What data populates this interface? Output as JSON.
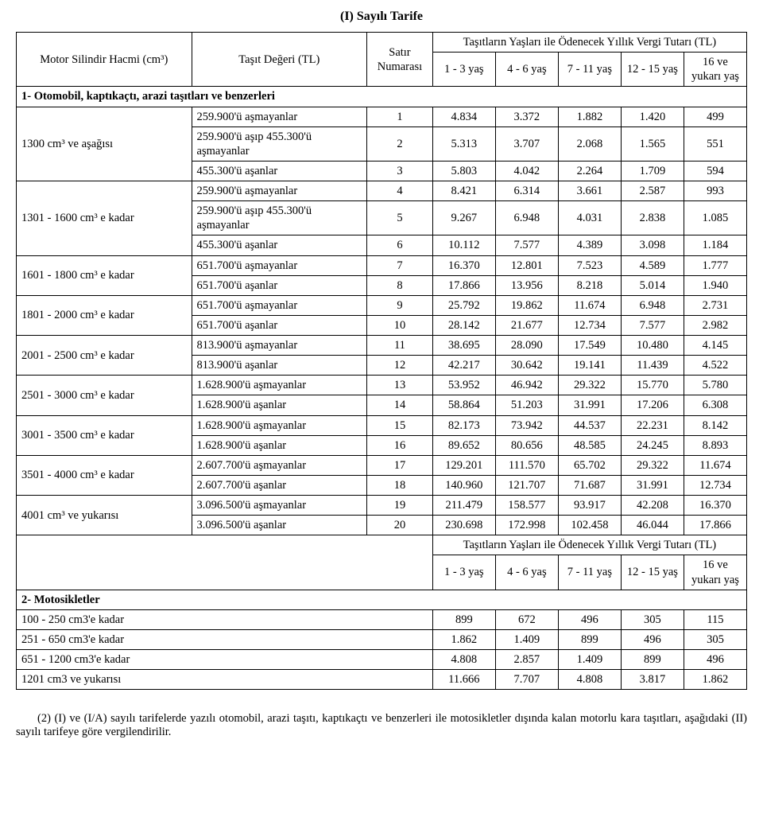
{
  "title": "(I) Sayılı Tarife",
  "headers": {
    "engine": "Motor Silindir Hacmi (cm³)",
    "value": "Taşıt Değeri (TL)",
    "rowNo": "Satır Numarası",
    "ageGroup": "Taşıtların Yaşları ile Ödenecek Yıllık Vergi Tutarı (TL)",
    "age1": "1 - 3 yaş",
    "age2": "4 - 6 yaş",
    "age3": "7 - 11 yaş",
    "age4": "12 - 15 yaş",
    "age5": "16 ve yukarı yaş"
  },
  "section1": "1- Otomobil, kaptıkaçtı, arazi taşıtları ve benzerleri",
  "groups": [
    {
      "engine": "1300 cm³ ve aşağısı",
      "rows": [
        {
          "value": "259.900'ü aşmayanlar",
          "no": "1",
          "v": [
            "4.834",
            "3.372",
            "1.882",
            "1.420",
            "499"
          ]
        },
        {
          "value": "259.900'ü aşıp 455.300'ü aşmayanlar",
          "no": "2",
          "v": [
            "5.313",
            "3.707",
            "2.068",
            "1.565",
            "551"
          ]
        },
        {
          "value": "455.300'ü aşanlar",
          "no": "3",
          "v": [
            "5.803",
            "4.042",
            "2.264",
            "1.709",
            "594"
          ]
        }
      ]
    },
    {
      "engine": "1301 - 1600 cm³ e kadar",
      "rows": [
        {
          "value": "259.900'ü aşmayanlar",
          "no": "4",
          "v": [
            "8.421",
            "6.314",
            "3.661",
            "2.587",
            "993"
          ]
        },
        {
          "value": "259.900'ü aşıp 455.300'ü aşmayanlar",
          "no": "5",
          "v": [
            "9.267",
            "6.948",
            "4.031",
            "2.838",
            "1.085"
          ]
        },
        {
          "value": "455.300'ü aşanlar",
          "no": "6",
          "v": [
            "10.112",
            "7.577",
            "4.389",
            "3.098",
            "1.184"
          ]
        }
      ]
    },
    {
      "engine": "1601 - 1800 cm³ e kadar",
      "rows": [
        {
          "value": "651.700'ü aşmayanlar",
          "no": "7",
          "v": [
            "16.370",
            "12.801",
            "7.523",
            "4.589",
            "1.777"
          ]
        },
        {
          "value": "651.700'ü aşanlar",
          "no": "8",
          "v": [
            "17.866",
            "13.956",
            "8.218",
            "5.014",
            "1.940"
          ]
        }
      ]
    },
    {
      "engine": "1801 - 2000 cm³ e kadar",
      "rows": [
        {
          "value": "651.700'ü aşmayanlar",
          "no": "9",
          "v": [
            "25.792",
            "19.862",
            "11.674",
            "6.948",
            "2.731"
          ]
        },
        {
          "value": "651.700'ü aşanlar",
          "no": "10",
          "v": [
            "28.142",
            "21.677",
            "12.734",
            "7.577",
            "2.982"
          ]
        }
      ]
    },
    {
      "engine": "2001 - 2500 cm³ e kadar",
      "rows": [
        {
          "value": "813.900'ü aşmayanlar",
          "no": "11",
          "v": [
            "38.695",
            "28.090",
            "17.549",
            "10.480",
            "4.145"
          ]
        },
        {
          "value": "813.900'ü aşanlar",
          "no": "12",
          "v": [
            "42.217",
            "30.642",
            "19.141",
            "11.439",
            "4.522"
          ]
        }
      ]
    },
    {
      "engine": "2501 - 3000 cm³ e kadar",
      "rows": [
        {
          "value": "1.628.900'ü aşmayanlar",
          "no": "13",
          "v": [
            "53.952",
            "46.942",
            "29.322",
            "15.770",
            "5.780"
          ]
        },
        {
          "value": "1.628.900'ü aşanlar",
          "no": "14",
          "v": [
            "58.864",
            "51.203",
            "31.991",
            "17.206",
            "6.308"
          ]
        }
      ]
    },
    {
      "engine": "3001 - 3500 cm³ e kadar",
      "rows": [
        {
          "value": "1.628.900'ü aşmayanlar",
          "no": "15",
          "v": [
            "82.173",
            "73.942",
            "44.537",
            "22.231",
            "8.142"
          ]
        },
        {
          "value": "1.628.900'ü aşanlar",
          "no": "16",
          "v": [
            "89.652",
            "80.656",
            "48.585",
            "24.245",
            "8.893"
          ]
        }
      ]
    },
    {
      "engine": "3501 - 4000 cm³ e kadar",
      "rows": [
        {
          "value": "2.607.700'ü aşmayanlar",
          "no": "17",
          "v": [
            "129.201",
            "111.570",
            "65.702",
            "29.322",
            "11.674"
          ]
        },
        {
          "value": "2.607.700'ü aşanlar",
          "no": "18",
          "v": [
            "140.960",
            "121.707",
            "71.687",
            "31.991",
            "12.734"
          ]
        }
      ]
    },
    {
      "engine": "4001 cm³ ve yukarısı",
      "rows": [
        {
          "value": "3.096.500'ü aşmayanlar",
          "no": "19",
          "v": [
            "211.479",
            "158.577",
            "93.917",
            "42.208",
            "16.370"
          ]
        },
        {
          "value": "3.096.500'ü aşanlar",
          "no": "20",
          "v": [
            "230.698",
            "172.998",
            "102.458",
            "46.044",
            "17.866"
          ]
        }
      ]
    }
  ],
  "section2": "2- Motosikletler",
  "motoRows": [
    {
      "engine": "100 - 250 cm3'e kadar",
      "v": [
        "899",
        "672",
        "496",
        "305",
        "115"
      ]
    },
    {
      "engine": "251 - 650 cm3'e kadar",
      "v": [
        "1.862",
        "1.409",
        "899",
        "496",
        "305"
      ]
    },
    {
      "engine": "651 - 1200 cm3'e kadar",
      "v": [
        "4.808",
        "2.857",
        "1.409",
        "899",
        "496"
      ]
    },
    {
      "engine": "1201 cm3 ve yukarısı",
      "v": [
        "11.666",
        "7.707",
        "4.808",
        "3.817",
        "1.862"
      ]
    }
  ],
  "footnote": "(2) (I) ve (I/A) sayılı tarifelerde yazılı otomobil, arazi taşıtı, kaptıkaçtı ve benzerleri ile motosikletler dışında kalan motorlu kara taşıtları, aşağıdaki (II) sayılı tarifeye göre vergilendirilir.",
  "colWidths": [
    "24%",
    "24%",
    "9%",
    "8.6%",
    "8.6%",
    "8.6%",
    "8.6%",
    "8.6%"
  ]
}
